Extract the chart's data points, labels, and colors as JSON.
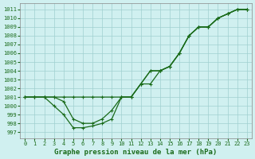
{
  "title": "Graphe pression niveau de la mer (hPa)",
  "bg_color": "#d0f0f0",
  "grid_color": "#a0d0d0",
  "line_color": "#1a6b1a",
  "x_ticks": [
    0,
    1,
    2,
    3,
    4,
    5,
    6,
    7,
    8,
    9,
    10,
    11,
    12,
    13,
    14,
    15,
    16,
    17,
    18,
    19,
    20,
    21,
    22,
    23
  ],
  "y_ticks": [
    997,
    998,
    999,
    1000,
    1001,
    1002,
    1003,
    1004,
    1005,
    1006,
    1007,
    1008,
    1009,
    1010,
    1011
  ],
  "ylim": [
    996.3,
    1011.7
  ],
  "xlim": [
    -0.5,
    23.5
  ],
  "line1_y": [
    1001,
    1001,
    1001,
    1001,
    1001,
    1001,
    1001,
    1001,
    1001,
    1001,
    1001,
    1001,
    1002.5,
    1004,
    1004,
    1004.5,
    1006,
    1008,
    1009,
    1009,
    1010,
    1010.5,
    1011,
    1011
  ],
  "line2_y": [
    1001,
    1001,
    1001,
    1001,
    1000.5,
    998.5,
    998,
    998,
    998.5,
    999.5,
    1001,
    1001,
    1002.5,
    1004,
    1004,
    1004.5,
    1006,
    1008,
    1009,
    1009,
    1010,
    1010.5,
    1011,
    1011
  ],
  "line3_y": [
    1001,
    1001,
    1001,
    1000,
    999,
    997.5,
    997.5,
    997.7,
    998,
    998.5,
    1001,
    1001,
    1002.5,
    1002.5,
    1004,
    1004.5,
    1006,
    1008,
    1009,
    1009,
    1010,
    1010.5,
    1011,
    1011
  ]
}
